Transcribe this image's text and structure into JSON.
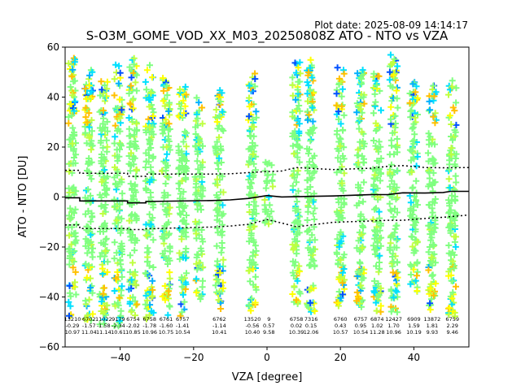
{
  "plot_date": "Plot date: 2025-08-09 14:14:17",
  "chart_data": {
    "type": "scatter",
    "title": "S-O3M_GOME_VOD_XX_M03_20250808Z ATO - NTO vs VZA",
    "xlabel": "VZA [degree]",
    "ylabel": "ATO - NTO [DU]",
    "xlim": [
      -55,
      55
    ],
    "ylim": [
      -60,
      60
    ],
    "xticks": [
      -40,
      -20,
      0,
      20,
      40
    ],
    "yticks": [
      -60,
      -40,
      -20,
      0,
      20,
      40,
      60
    ],
    "grid": false,
    "legend": "none",
    "point_colors": [
      "#80ff80",
      "#c0ff40",
      "#ffff00",
      "#ffc000",
      "#00e0ff",
      "#00b0ff",
      "#0050ff"
    ],
    "bins": [
      {
        "x": -53.0,
        "count": "13210",
        "mean": "-0.29",
        "std": "10.97",
        "ymin": -48,
        "ymax": 56
      },
      {
        "x": -48.5,
        "count": "6702",
        "mean": "-1.57",
        "std": "11.04",
        "ymin": -50,
        "ymax": 51
      },
      {
        "x": -44.5,
        "count": "11022",
        "mean": "-1.58",
        "std": "11.14",
        "ymin": -51,
        "ymax": 49
      },
      {
        "x": -40.5,
        "count": "9179",
        "mean": "-2.34",
        "std": "10.61",
        "ymin": -52,
        "ymax": 53
      },
      {
        "x": -36.5,
        "count": "6754",
        "mean": "-2.02",
        "std": "10.85",
        "ymin": -48,
        "ymax": 56
      },
      {
        "x": -32.0,
        "count": "6758",
        "mean": "-1.78",
        "std": "10.96",
        "ymin": -49,
        "ymax": 53
      },
      {
        "x": -27.5,
        "count": "6761",
        "mean": "-1.60",
        "std": "10.75",
        "ymin": -48,
        "ymax": 48
      },
      {
        "x": -23.0,
        "count": "6757",
        "mean": "-1.41",
        "std": "10.54",
        "ymin": -48,
        "ymax": 45
      },
      {
        "x": -18.5,
        "count": "",
        "mean": "",
        "std": "",
        "ymin": -41,
        "ymax": 40
      },
      {
        "x": -13.0,
        "count": "6762",
        "mean": "-1.14",
        "std": "10.41",
        "ymin": -45,
        "ymax": 44
      },
      {
        "x": -4.0,
        "count": "13520",
        "mean": "-0.56",
        "std": "10.40",
        "ymin": -48,
        "ymax": 50
      },
      {
        "x": 0.5,
        "count": "9",
        "mean": "0.57",
        "std": "9.58",
        "ymin": -11,
        "ymax": 14
      },
      {
        "x": 8.0,
        "count": "6758",
        "mean": "0.02",
        "std": "10.39",
        "ymin": -43,
        "ymax": 54
      },
      {
        "x": 12.0,
        "count": "7316",
        "mean": "0.15",
        "std": "12.06",
        "ymin": -46,
        "ymax": 56
      },
      {
        "x": 20.0,
        "count": "6760",
        "mean": "0.43",
        "std": "10.57",
        "ymin": -44,
        "ymax": 52
      },
      {
        "x": 25.5,
        "count": "6757",
        "mean": "0.95",
        "std": "10.54",
        "ymin": -45,
        "ymax": 51
      },
      {
        "x": 30.0,
        "count": "6874",
        "mean": "1.02",
        "std": "11.28",
        "ymin": -46,
        "ymax": 50
      },
      {
        "x": 34.5,
        "count": "12427",
        "mean": "1.70",
        "std": "10.96",
        "ymin": -47,
        "ymax": 58
      },
      {
        "x": 40.0,
        "count": "6909",
        "mean": "1.59",
        "std": "10.19",
        "ymin": -40,
        "ymax": 47
      },
      {
        "x": 45.0,
        "count": "13872",
        "mean": "1.81",
        "std": "9.93",
        "ymin": -46,
        "ymax": 46
      },
      {
        "x": 50.5,
        "count": "6759",
        "mean": "2.29",
        "std": "9.46",
        "ymin": -48,
        "ymax": 47
      }
    ],
    "mean_line": [
      {
        "x": -55,
        "y": -0.29
      },
      {
        "x": -51,
        "y": -0.29
      },
      {
        "x": -51,
        "y": -1.57
      },
      {
        "x": -38,
        "y": -1.57
      },
      {
        "x": -38,
        "y": -2.34
      },
      {
        "x": -33,
        "y": -2.34
      },
      {
        "x": -33,
        "y": -1.78
      },
      {
        "x": -15,
        "y": -1.41
      },
      {
        "x": -10,
        "y": -1.14
      },
      {
        "x": -5,
        "y": -0.56
      },
      {
        "x": 0,
        "y": 0.57
      },
      {
        "x": 4,
        "y": 0.02
      },
      {
        "x": 18,
        "y": 0.43
      },
      {
        "x": 28,
        "y": 0.95
      },
      {
        "x": 33,
        "y": 1.02
      },
      {
        "x": 37,
        "y": 1.7
      },
      {
        "x": 43,
        "y": 1.59
      },
      {
        "x": 48,
        "y": 1.81
      },
      {
        "x": 50,
        "y": 2.29
      },
      {
        "x": 55,
        "y": 2.29
      }
    ],
    "upper_band": [
      {
        "x": -55,
        "y": 10.7
      },
      {
        "x": -51,
        "y": 10.7
      },
      {
        "x": -51,
        "y": 9.5
      },
      {
        "x": -38,
        "y": 9.5
      },
      {
        "x": -38,
        "y": 8.3
      },
      {
        "x": -33,
        "y": 8.3
      },
      {
        "x": -33,
        "y": 9.2
      },
      {
        "x": -15,
        "y": 9.2
      },
      {
        "x": -10,
        "y": 9.3
      },
      {
        "x": -5,
        "y": 9.8
      },
      {
        "x": 0,
        "y": 10.2
      },
      {
        "x": 4,
        "y": 10.4
      },
      {
        "x": 8,
        "y": 11.8
      },
      {
        "x": 18,
        "y": 11.0
      },
      {
        "x": 28,
        "y": 11.5
      },
      {
        "x": 33,
        "y": 12.3
      },
      {
        "x": 37,
        "y": 12.6
      },
      {
        "x": 43,
        "y": 11.8
      },
      {
        "x": 48,
        "y": 11.7
      },
      {
        "x": 55,
        "y": 11.8
      }
    ],
    "lower_band": [
      {
        "x": -55,
        "y": -11.2
      },
      {
        "x": -51,
        "y": -11.2
      },
      {
        "x": -51,
        "y": -12.6
      },
      {
        "x": -38,
        "y": -12.6
      },
      {
        "x": -38,
        "y": -13.0
      },
      {
        "x": -33,
        "y": -13.0
      },
      {
        "x": -33,
        "y": -12.7
      },
      {
        "x": -15,
        "y": -12.0
      },
      {
        "x": -10,
        "y": -11.6
      },
      {
        "x": -5,
        "y": -10.9
      },
      {
        "x": 0,
        "y": -9.0
      },
      {
        "x": 4,
        "y": -10.4
      },
      {
        "x": 8,
        "y": -11.9
      },
      {
        "x": 18,
        "y": -10.1
      },
      {
        "x": 28,
        "y": -9.6
      },
      {
        "x": 33,
        "y": -9.3
      },
      {
        "x": 37,
        "y": -9.3
      },
      {
        "x": 43,
        "y": -8.6
      },
      {
        "x": 48,
        "y": -8.1
      },
      {
        "x": 55,
        "y": -7.2
      }
    ]
  }
}
